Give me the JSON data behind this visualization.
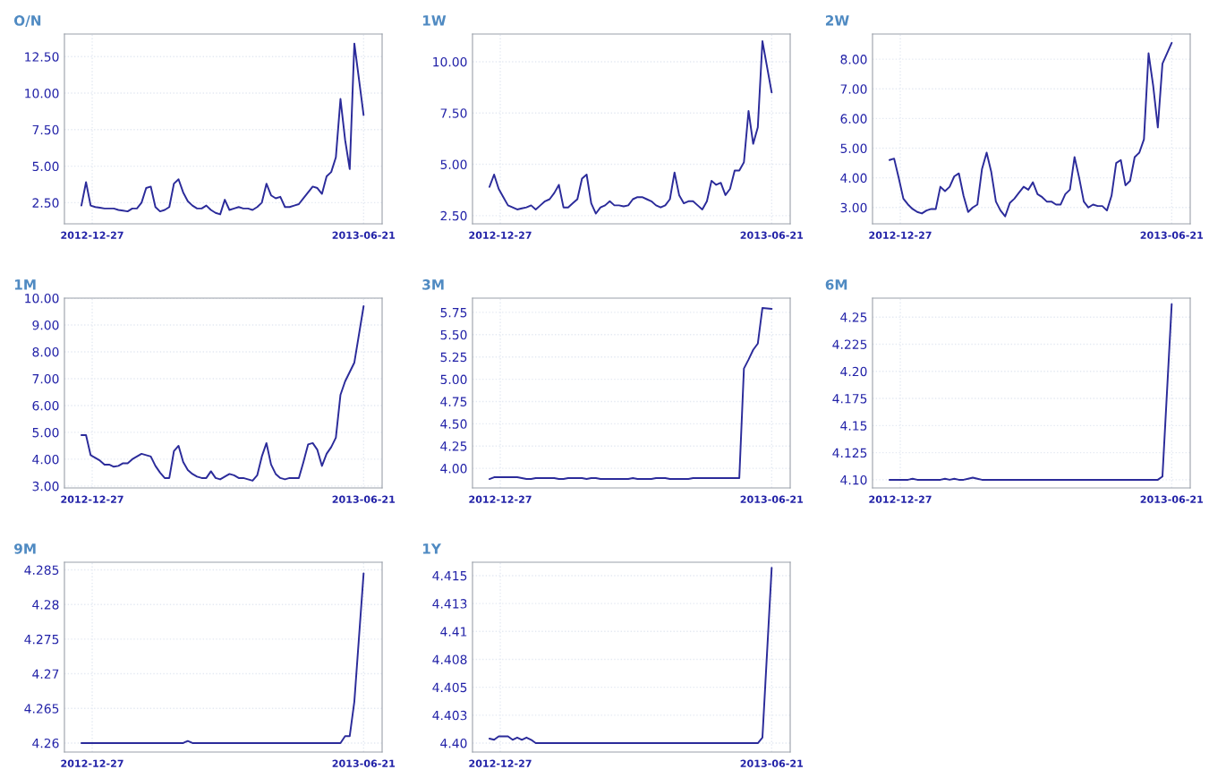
{
  "chart_data": [
    {
      "type": "line",
      "title": "O/N",
      "grid": true,
      "xlim": [
        "2012-12-09",
        "2013-07-03"
      ],
      "xticks": [
        "2012-12-27",
        "2013-06-21"
      ],
      "ylim": [
        1.05,
        14.05
      ],
      "yticks": [
        {
          "value": 2.5,
          "label": "2.50"
        },
        {
          "value": 5,
          "label": "5.00"
        },
        {
          "value": 7.5,
          "label": "7.50"
        },
        {
          "value": 10,
          "label": "10.00"
        },
        {
          "value": 12.5,
          "label": "12.50"
        }
      ],
      "x": [
        "2012-12-20",
        "2012-12-23",
        "2012-12-26",
        "2012-12-29",
        "2013-01-01",
        "2013-01-04",
        "2013-01-07",
        "2013-01-10",
        "2013-01-13",
        "2013-01-16",
        "2013-01-19",
        "2013-01-22",
        "2013-01-25",
        "2013-01-28",
        "2013-01-31",
        "2013-02-03",
        "2013-02-06",
        "2013-02-09",
        "2013-02-12",
        "2013-02-15",
        "2013-02-18",
        "2013-02-21",
        "2013-02-24",
        "2013-02-27",
        "2013-03-02",
        "2013-03-05",
        "2013-03-08",
        "2013-03-11",
        "2013-03-14",
        "2013-03-17",
        "2013-03-20",
        "2013-03-23",
        "2013-03-26",
        "2013-03-29",
        "2013-04-01",
        "2013-04-04",
        "2013-04-07",
        "2013-04-10",
        "2013-04-13",
        "2013-04-16",
        "2013-04-19",
        "2013-04-22",
        "2013-04-25",
        "2013-04-28",
        "2013-05-01",
        "2013-05-04",
        "2013-05-07",
        "2013-05-10",
        "2013-05-13",
        "2013-05-16",
        "2013-05-19",
        "2013-05-22",
        "2013-05-25",
        "2013-05-28",
        "2013-05-31",
        "2013-06-03",
        "2013-06-06",
        "2013-06-09",
        "2013-06-12",
        "2013-06-15",
        "2013-06-21"
      ],
      "series": [
        {
          "color": "#2b2b9a",
          "values": [
            2.3,
            3.9,
            2.3,
            2.2,
            2.15,
            2.1,
            2.1,
            2.1,
            2.0,
            1.95,
            1.9,
            2.1,
            2.1,
            2.5,
            3.5,
            3.6,
            2.2,
            1.9,
            2.0,
            2.2,
            3.8,
            4.1,
            3.2,
            2.6,
            2.3,
            2.1,
            2.1,
            2.3,
            2.0,
            1.8,
            1.7,
            2.7,
            2.0,
            2.1,
            2.2,
            2.1,
            2.1,
            2.0,
            2.2,
            2.5,
            3.8,
            3.0,
            2.8,
            2.9,
            2.2,
            2.2,
            2.3,
            2.4,
            2.8,
            3.2,
            3.6,
            3.5,
            3.1,
            4.3,
            4.6,
            5.6,
            9.6,
            6.8,
            4.8,
            13.4,
            8.5
          ]
        }
      ]
    },
    {
      "type": "line",
      "title": "1W",
      "grid": true,
      "xlim": [
        "2012-12-09",
        "2013-07-03"
      ],
      "xticks": [
        "2012-12-27",
        "2013-06-21"
      ],
      "ylim": [
        2.1,
        11.35
      ],
      "yticks": [
        {
          "value": 2.5,
          "label": "2.50"
        },
        {
          "value": 5,
          "label": "5.00"
        },
        {
          "value": 7.5,
          "label": "7.50"
        },
        {
          "value": 10,
          "label": "10.00"
        }
      ],
      "x": [
        "2012-12-20",
        "2012-12-23",
        "2012-12-26",
        "2012-12-29",
        "2013-01-01",
        "2013-01-04",
        "2013-01-07",
        "2013-01-10",
        "2013-01-13",
        "2013-01-16",
        "2013-01-19",
        "2013-01-22",
        "2013-01-25",
        "2013-01-28",
        "2013-01-31",
        "2013-02-03",
        "2013-02-06",
        "2013-02-09",
        "2013-02-12",
        "2013-02-15",
        "2013-02-18",
        "2013-02-21",
        "2013-02-24",
        "2013-02-27",
        "2013-03-02",
        "2013-03-05",
        "2013-03-08",
        "2013-03-11",
        "2013-03-14",
        "2013-03-17",
        "2013-03-20",
        "2013-03-23",
        "2013-03-26",
        "2013-03-29",
        "2013-04-01",
        "2013-04-04",
        "2013-04-07",
        "2013-04-10",
        "2013-04-13",
        "2013-04-16",
        "2013-04-19",
        "2013-04-22",
        "2013-04-25",
        "2013-04-28",
        "2013-05-01",
        "2013-05-04",
        "2013-05-07",
        "2013-05-10",
        "2013-05-13",
        "2013-05-16",
        "2013-05-19",
        "2013-05-22",
        "2013-05-25",
        "2013-05-28",
        "2013-05-31",
        "2013-06-03",
        "2013-06-06",
        "2013-06-09",
        "2013-06-12",
        "2013-06-15",
        "2013-06-21"
      ],
      "series": [
        {
          "color": "#2b2b9a",
          "values": [
            3.9,
            4.5,
            3.8,
            3.4,
            3.0,
            2.9,
            2.8,
            2.85,
            2.9,
            3.0,
            2.8,
            3.0,
            3.2,
            3.3,
            3.6,
            4.0,
            2.9,
            2.9,
            3.1,
            3.3,
            4.3,
            4.5,
            3.1,
            2.6,
            2.9,
            3.0,
            3.2,
            3.0,
            3.0,
            2.95,
            3.0,
            3.3,
            3.4,
            3.4,
            3.3,
            3.2,
            3.0,
            2.9,
            3.0,
            3.3,
            4.6,
            3.5,
            3.1,
            3.2,
            3.2,
            3.0,
            2.8,
            3.2,
            4.2,
            4.0,
            4.1,
            3.5,
            3.8,
            4.7,
            4.7,
            5.1,
            7.6,
            6.0,
            6.8,
            11.0,
            8.5
          ]
        }
      ]
    },
    {
      "type": "line",
      "title": "2W",
      "grid": true,
      "xlim": [
        "2012-12-09",
        "2013-07-03"
      ],
      "xticks": [
        "2012-12-27",
        "2013-06-21"
      ],
      "ylim": [
        2.45,
        8.85
      ],
      "yticks": [
        {
          "value": 3,
          "label": "3.00"
        },
        {
          "value": 4,
          "label": "4.00"
        },
        {
          "value": 5,
          "label": "5.00"
        },
        {
          "value": 6,
          "label": "6.00"
        },
        {
          "value": 7,
          "label": "7.00"
        },
        {
          "value": 8,
          "label": "8.00"
        }
      ],
      "x": [
        "2012-12-20",
        "2012-12-23",
        "2012-12-26",
        "2012-12-29",
        "2013-01-01",
        "2013-01-04",
        "2013-01-07",
        "2013-01-10",
        "2013-01-13",
        "2013-01-16",
        "2013-01-19",
        "2013-01-22",
        "2013-01-25",
        "2013-01-28",
        "2013-01-31",
        "2013-02-03",
        "2013-02-06",
        "2013-02-09",
        "2013-02-12",
        "2013-02-15",
        "2013-02-18",
        "2013-02-21",
        "2013-02-24",
        "2013-02-27",
        "2013-03-02",
        "2013-03-05",
        "2013-03-08",
        "2013-03-11",
        "2013-03-14",
        "2013-03-17",
        "2013-03-20",
        "2013-03-23",
        "2013-03-26",
        "2013-03-29",
        "2013-04-01",
        "2013-04-04",
        "2013-04-07",
        "2013-04-10",
        "2013-04-13",
        "2013-04-16",
        "2013-04-19",
        "2013-04-22",
        "2013-04-25",
        "2013-04-28",
        "2013-05-01",
        "2013-05-04",
        "2013-05-07",
        "2013-05-10",
        "2013-05-13",
        "2013-05-16",
        "2013-05-19",
        "2013-05-22",
        "2013-05-25",
        "2013-05-28",
        "2013-05-31",
        "2013-06-03",
        "2013-06-06",
        "2013-06-09",
        "2013-06-12",
        "2013-06-15",
        "2013-06-21"
      ],
      "series": [
        {
          "color": "#2b2b9a",
          "values": [
            4.6,
            4.65,
            4.0,
            3.3,
            3.1,
            2.95,
            2.85,
            2.8,
            2.9,
            2.95,
            2.95,
            3.7,
            3.55,
            3.7,
            4.05,
            4.15,
            3.4,
            2.85,
            3.0,
            3.1,
            4.3,
            4.85,
            4.2,
            3.2,
            2.9,
            2.7,
            3.15,
            3.3,
            3.5,
            3.7,
            3.6,
            3.85,
            3.45,
            3.35,
            3.2,
            3.2,
            3.1,
            3.1,
            3.45,
            3.6,
            4.7,
            4.0,
            3.2,
            3.0,
            3.1,
            3.05,
            3.05,
            2.9,
            3.4,
            4.5,
            4.6,
            3.75,
            3.9,
            4.7,
            4.85,
            5.3,
            8.2,
            7.1,
            5.7,
            7.85,
            8.55
          ]
        }
      ]
    },
    {
      "type": "line",
      "title": "1M",
      "grid": true,
      "xlim": [
        "2012-12-09",
        "2013-07-03"
      ],
      "xticks": [
        "2012-12-27",
        "2013-06-21"
      ],
      "ylim": [
        2.93,
        10.0
      ],
      "yticks": [
        {
          "value": 3,
          "label": "3.00"
        },
        {
          "value": 4,
          "label": "4.00"
        },
        {
          "value": 5,
          "label": "5.00"
        },
        {
          "value": 6,
          "label": "6.00"
        },
        {
          "value": 7,
          "label": "7.00"
        },
        {
          "value": 8,
          "label": "8.00"
        },
        {
          "value": 9,
          "label": "9.00"
        },
        {
          "value": 10,
          "label": "10.00"
        }
      ],
      "x": [
        "2012-12-20",
        "2012-12-23",
        "2012-12-26",
        "2012-12-29",
        "2013-01-01",
        "2013-01-04",
        "2013-01-07",
        "2013-01-10",
        "2013-01-13",
        "2013-01-16",
        "2013-01-19",
        "2013-01-22",
        "2013-01-25",
        "2013-01-28",
        "2013-01-31",
        "2013-02-03",
        "2013-02-06",
        "2013-02-09",
        "2013-02-12",
        "2013-02-15",
        "2013-02-18",
        "2013-02-21",
        "2013-02-24",
        "2013-02-27",
        "2013-03-02",
        "2013-03-05",
        "2013-03-08",
        "2013-03-11",
        "2013-03-14",
        "2013-03-17",
        "2013-03-20",
        "2013-03-23",
        "2013-03-26",
        "2013-03-29",
        "2013-04-01",
        "2013-04-04",
        "2013-04-07",
        "2013-04-10",
        "2013-04-13",
        "2013-04-16",
        "2013-04-19",
        "2013-04-22",
        "2013-04-25",
        "2013-04-28",
        "2013-05-01",
        "2013-05-04",
        "2013-05-07",
        "2013-05-10",
        "2013-05-13",
        "2013-05-16",
        "2013-05-19",
        "2013-05-22",
        "2013-05-25",
        "2013-05-28",
        "2013-05-31",
        "2013-06-03",
        "2013-06-06",
        "2013-06-09",
        "2013-06-12",
        "2013-06-15",
        "2013-06-21"
      ],
      "series": [
        {
          "color": "#2b2b9a",
          "values": [
            4.9,
            4.9,
            4.15,
            4.05,
            3.95,
            3.8,
            3.8,
            3.72,
            3.75,
            3.85,
            3.85,
            4.0,
            4.1,
            4.2,
            4.15,
            4.1,
            3.75,
            3.5,
            3.3,
            3.3,
            4.3,
            4.5,
            3.9,
            3.6,
            3.45,
            3.35,
            3.3,
            3.3,
            3.55,
            3.3,
            3.25,
            3.35,
            3.45,
            3.4,
            3.3,
            3.3,
            3.25,
            3.2,
            3.4,
            4.1,
            4.6,
            3.8,
            3.45,
            3.3,
            3.25,
            3.3,
            3.3,
            3.3,
            3.9,
            4.55,
            4.6,
            4.35,
            3.75,
            4.2,
            4.45,
            4.8,
            6.4,
            6.9,
            7.25,
            7.6,
            9.7
          ]
        }
      ]
    },
    {
      "type": "line",
      "title": "3M",
      "grid": true,
      "xlim": [
        "2012-12-09",
        "2013-07-03"
      ],
      "xticks": [
        "2012-12-27",
        "2013-06-21"
      ],
      "ylim": [
        3.78,
        5.91
      ],
      "yticks": [
        {
          "value": 4,
          "label": "4.00"
        },
        {
          "value": 4.25,
          "label": "4.25"
        },
        {
          "value": 4.5,
          "label": "4.50"
        },
        {
          "value": 4.75,
          "label": "4.75"
        },
        {
          "value": 5,
          "label": "5.00"
        },
        {
          "value": 5.25,
          "label": "5.25"
        },
        {
          "value": 5.5,
          "label": "5.50"
        },
        {
          "value": 5.75,
          "label": "5.75"
        }
      ],
      "x": [
        "2012-12-20",
        "2012-12-23",
        "2012-12-26",
        "2012-12-29",
        "2013-01-01",
        "2013-01-04",
        "2013-01-07",
        "2013-01-10",
        "2013-01-13",
        "2013-01-16",
        "2013-01-19",
        "2013-01-22",
        "2013-01-25",
        "2013-01-28",
        "2013-01-31",
        "2013-02-03",
        "2013-02-06",
        "2013-02-09",
        "2013-02-12",
        "2013-02-15",
        "2013-02-18",
        "2013-02-21",
        "2013-02-24",
        "2013-02-27",
        "2013-03-02",
        "2013-03-05",
        "2013-03-08",
        "2013-03-11",
        "2013-03-14",
        "2013-03-17",
        "2013-03-20",
        "2013-03-23",
        "2013-03-26",
        "2013-03-29",
        "2013-04-01",
        "2013-04-04",
        "2013-04-07",
        "2013-04-10",
        "2013-04-13",
        "2013-04-16",
        "2013-04-19",
        "2013-04-22",
        "2013-04-25",
        "2013-04-28",
        "2013-05-01",
        "2013-05-04",
        "2013-05-07",
        "2013-05-10",
        "2013-05-13",
        "2013-05-16",
        "2013-05-19",
        "2013-05-22",
        "2013-05-25",
        "2013-05-28",
        "2013-05-31",
        "2013-06-03",
        "2013-06-06",
        "2013-06-09",
        "2013-06-12",
        "2013-06-15",
        "2013-06-21"
      ],
      "series": [
        {
          "color": "#2b2b9a",
          "values": [
            3.88,
            3.9,
            3.9,
            3.9,
            3.9,
            3.9,
            3.9,
            3.89,
            3.88,
            3.88,
            3.89,
            3.89,
            3.89,
            3.89,
            3.89,
            3.88,
            3.88,
            3.89,
            3.89,
            3.89,
            3.89,
            3.88,
            3.89,
            3.89,
            3.88,
            3.88,
            3.88,
            3.88,
            3.88,
            3.88,
            3.88,
            3.89,
            3.88,
            3.88,
            3.88,
            3.88,
            3.89,
            3.89,
            3.89,
            3.88,
            3.88,
            3.88,
            3.88,
            3.88,
            3.89,
            3.89,
            3.89,
            3.89,
            3.89,
            3.89,
            3.89,
            3.89,
            3.89,
            3.89,
            3.89,
            5.12,
            5.22,
            5.33,
            5.4,
            5.8,
            5.79
          ]
        }
      ]
    },
    {
      "type": "line",
      "title": "6M",
      "grid": true,
      "xlim": [
        "2012-12-09",
        "2013-07-03"
      ],
      "xticks": [
        "2012-12-27",
        "2013-06-21"
      ],
      "ylim": [
        4.0925,
        4.2675
      ],
      "yticks": [
        {
          "value": 4.1,
          "label": "4.10"
        },
        4.125,
        4.15,
        4.175,
        {
          "value": 4.2,
          "label": "4.20"
        },
        4.225,
        {
          "value": 4.25,
          "label": "4.25"
        }
      ],
      "x": [
        "2012-12-20",
        "2012-12-23",
        "2012-12-26",
        "2012-12-29",
        "2013-01-01",
        "2013-01-04",
        "2013-01-07",
        "2013-01-10",
        "2013-01-13",
        "2013-01-16",
        "2013-01-19",
        "2013-01-22",
        "2013-01-25",
        "2013-01-28",
        "2013-01-31",
        "2013-02-03",
        "2013-02-06",
        "2013-02-09",
        "2013-02-12",
        "2013-02-15",
        "2013-02-18",
        "2013-02-21",
        "2013-02-24",
        "2013-02-27",
        "2013-03-02",
        "2013-03-05",
        "2013-03-08",
        "2013-03-11",
        "2013-03-14",
        "2013-03-17",
        "2013-03-20",
        "2013-03-23",
        "2013-03-26",
        "2013-03-29",
        "2013-04-01",
        "2013-04-04",
        "2013-04-07",
        "2013-04-10",
        "2013-04-13",
        "2013-04-16",
        "2013-04-19",
        "2013-04-22",
        "2013-04-25",
        "2013-04-28",
        "2013-05-01",
        "2013-05-04",
        "2013-05-07",
        "2013-05-10",
        "2013-05-13",
        "2013-05-16",
        "2013-05-19",
        "2013-05-22",
        "2013-05-25",
        "2013-05-28",
        "2013-05-31",
        "2013-06-03",
        "2013-06-06",
        "2013-06-09",
        "2013-06-12",
        "2013-06-15",
        "2013-06-21"
      ],
      "series": [
        {
          "color": "#2b2b9a",
          "values": [
            4.1,
            4.1,
            4.1,
            4.1,
            4.1,
            4.101,
            4.1,
            4.1,
            4.1,
            4.1,
            4.1,
            4.1,
            4.101,
            4.1,
            4.101,
            4.1,
            4.1,
            4.101,
            4.102,
            4.101,
            4.1,
            4.1,
            4.1,
            4.1,
            4.1,
            4.1,
            4.1,
            4.1,
            4.1,
            4.1,
            4.1,
            4.1,
            4.1,
            4.1,
            4.1,
            4.1,
            4.1,
            4.1,
            4.1,
            4.1,
            4.1,
            4.1,
            4.1,
            4.1,
            4.1,
            4.1,
            4.1,
            4.1,
            4.1,
            4.1,
            4.1,
            4.1,
            4.1,
            4.1,
            4.1,
            4.1,
            4.1,
            4.1,
            4.1,
            4.103,
            4.262
          ]
        }
      ]
    },
    {
      "type": "line",
      "title": "9M",
      "grid": true,
      "xlim": [
        "2012-12-09",
        "2013-07-03"
      ],
      "xticks": [
        "2012-12-27",
        "2013-06-21"
      ],
      "ylim": [
        4.2587,
        4.2861
      ],
      "yticks": [
        4.26,
        4.265,
        4.27,
        4.275,
        4.28,
        4.285
      ],
      "x": [
        "2012-12-20",
        "2012-12-23",
        "2012-12-26",
        "2012-12-29",
        "2013-01-01",
        "2013-01-04",
        "2013-01-07",
        "2013-01-10",
        "2013-01-13",
        "2013-01-16",
        "2013-01-19",
        "2013-01-22",
        "2013-01-25",
        "2013-01-28",
        "2013-01-31",
        "2013-02-03",
        "2013-02-06",
        "2013-02-09",
        "2013-02-12",
        "2013-02-15",
        "2013-02-18",
        "2013-02-21",
        "2013-02-24",
        "2013-02-27",
        "2013-03-02",
        "2013-03-05",
        "2013-03-08",
        "2013-03-11",
        "2013-03-14",
        "2013-03-17",
        "2013-03-20",
        "2013-03-23",
        "2013-03-26",
        "2013-03-29",
        "2013-04-01",
        "2013-04-04",
        "2013-04-07",
        "2013-04-10",
        "2013-04-13",
        "2013-04-16",
        "2013-04-19",
        "2013-04-22",
        "2013-04-25",
        "2013-04-28",
        "2013-05-01",
        "2013-05-04",
        "2013-05-07",
        "2013-05-10",
        "2013-05-13",
        "2013-05-16",
        "2013-05-19",
        "2013-05-22",
        "2013-05-25",
        "2013-05-28",
        "2013-05-31",
        "2013-06-03",
        "2013-06-06",
        "2013-06-09",
        "2013-06-12",
        "2013-06-15",
        "2013-06-21"
      ],
      "series": [
        {
          "color": "#2b2b9a",
          "values": [
            4.26,
            4.26,
            4.26,
            4.26,
            4.26,
            4.26,
            4.26,
            4.26,
            4.26,
            4.26,
            4.26,
            4.26,
            4.26,
            4.26,
            4.26,
            4.26,
            4.26,
            4.26,
            4.26,
            4.26,
            4.26,
            4.26,
            4.26,
            4.2603,
            4.26,
            4.26,
            4.26,
            4.26,
            4.26,
            4.26,
            4.26,
            4.26,
            4.26,
            4.26,
            4.26,
            4.26,
            4.26,
            4.26,
            4.26,
            4.26,
            4.26,
            4.26,
            4.26,
            4.26,
            4.26,
            4.26,
            4.26,
            4.26,
            4.26,
            4.26,
            4.26,
            4.26,
            4.26,
            4.26,
            4.26,
            4.26,
            4.26,
            4.261,
            4.261,
            4.266,
            4.2845
          ]
        }
      ]
    },
    {
      "type": "line",
      "title": "1Y",
      "grid": true,
      "xlim": [
        "2012-12-09",
        "2013-07-03"
      ],
      "xticks": [
        "2012-12-27",
        "2013-06-21"
      ],
      "ylim": [
        4.3992,
        4.4162
      ],
      "yticks": [
        {
          "value": 4.4,
          "label": "4.40"
        },
        {
          "value": 4.4025,
          "label": "4.403"
        },
        4.405,
        {
          "value": 4.4075,
          "label": "4.408"
        },
        4.41,
        {
          "value": 4.4125,
          "label": "4.413"
        },
        4.415
      ],
      "x": [
        "2012-12-20",
        "2012-12-23",
        "2012-12-26",
        "2012-12-29",
        "2013-01-01",
        "2013-01-04",
        "2013-01-07",
        "2013-01-10",
        "2013-01-13",
        "2013-01-16",
        "2013-01-19",
        "2013-01-22",
        "2013-01-25",
        "2013-01-28",
        "2013-01-31",
        "2013-02-03",
        "2013-02-06",
        "2013-02-09",
        "2013-02-12",
        "2013-02-15",
        "2013-02-18",
        "2013-02-21",
        "2013-02-24",
        "2013-02-27",
        "2013-03-02",
        "2013-03-05",
        "2013-03-08",
        "2013-03-11",
        "2013-03-14",
        "2013-03-17",
        "2013-03-20",
        "2013-03-23",
        "2013-03-26",
        "2013-03-29",
        "2013-04-01",
        "2013-04-04",
        "2013-04-07",
        "2013-04-10",
        "2013-04-13",
        "2013-04-16",
        "2013-04-19",
        "2013-04-22",
        "2013-04-25",
        "2013-04-28",
        "2013-05-01",
        "2013-05-04",
        "2013-05-07",
        "2013-05-10",
        "2013-05-13",
        "2013-05-16",
        "2013-05-19",
        "2013-05-22",
        "2013-05-25",
        "2013-05-28",
        "2013-05-31",
        "2013-06-03",
        "2013-06-06",
        "2013-06-09",
        "2013-06-12",
        "2013-06-15",
        "2013-06-21"
      ],
      "series": [
        {
          "color": "#2b2b9a",
          "values": [
            4.4004,
            4.4003,
            4.4006,
            4.4006,
            4.4006,
            4.4003,
            4.4005,
            4.4003,
            4.4005,
            4.4003,
            4.4,
            4.4,
            4.4,
            4.4,
            4.4,
            4.4,
            4.4,
            4.4,
            4.4,
            4.4,
            4.4,
            4.4,
            4.4,
            4.4,
            4.4,
            4.4,
            4.4,
            4.4,
            4.4,
            4.4,
            4.4,
            4.4,
            4.4,
            4.4,
            4.4,
            4.4,
            4.4,
            4.4,
            4.4,
            4.4,
            4.4,
            4.4,
            4.4,
            4.4,
            4.4,
            4.4,
            4.4,
            4.4,
            4.4,
            4.4,
            4.4,
            4.4,
            4.4,
            4.4,
            4.4,
            4.4,
            4.4,
            4.4,
            4.4,
            4.4005,
            4.4157
          ]
        }
      ]
    }
  ]
}
